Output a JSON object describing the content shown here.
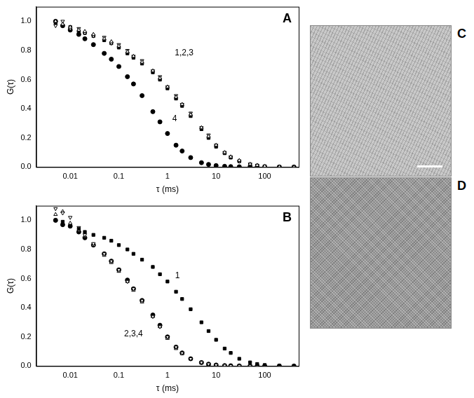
{
  "chart_data": [
    {
      "type": "scatter",
      "title": "A",
      "x_label": "τ (ms)",
      "y_label": "G(τ)",
      "log": "x",
      "grid": false,
      "xlim": [
        0.002,
        500
      ],
      "xticks": [
        0.01,
        0.1,
        1,
        10,
        100
      ],
      "ylim": [
        0,
        1.1
      ],
      "yticks": [
        {
          "value": 0,
          "label": "0.0"
        },
        0.2,
        0.4,
        0.6,
        0.8,
        {
          "value": 1,
          "label": "1.0"
        }
      ],
      "x": [
        0.005,
        0.007,
        0.01,
        0.015,
        0.02,
        0.03,
        0.05,
        0.07,
        0.1,
        0.15,
        0.2,
        0.3,
        0.5,
        0.7,
        1,
        1.5,
        2,
        3,
        5,
        7,
        10,
        15,
        20,
        30,
        50,
        70,
        100,
        200,
        400
      ],
      "series": [
        {
          "color": "#000000",
          "marker": "triangle-open",
          "values": [
            1.0,
            0.98,
            0.96,
            0.94,
            0.93,
            0.91,
            0.88,
            0.86,
            0.83,
            0.79,
            0.76,
            0.72,
            0.66,
            0.61,
            0.55,
            0.48,
            0.43,
            0.36,
            0.27,
            0.21,
            0.15,
            0.1,
            0.07,
            0.045,
            0.02,
            0.012,
            0.006,
            0.002,
            0.0
          ]
        },
        {
          "color": "#000000",
          "marker": "triangle-down-open",
          "values": [
            0.97,
            1.0,
            0.95,
            0.95,
            0.92,
            0.9,
            0.89,
            0.85,
            0.84,
            0.8,
            0.76,
            0.73,
            0.66,
            0.62,
            0.55,
            0.49,
            0.43,
            0.37,
            0.27,
            0.22,
            0.15,
            0.1,
            0.07,
            0.04,
            0.02,
            0.011,
            0.005,
            0.002,
            0.0
          ]
        },
        {
          "color": "#000000",
          "marker": "square",
          "values": [
            0.99,
            0.97,
            0.96,
            0.93,
            0.92,
            0.9,
            0.87,
            0.85,
            0.82,
            0.78,
            0.75,
            0.71,
            0.65,
            0.6,
            0.54,
            0.47,
            0.42,
            0.35,
            0.26,
            0.2,
            0.14,
            0.095,
            0.065,
            0.04,
            0.018,
            0.01,
            0.005,
            0.001,
            0.0
          ]
        },
        {
          "color": "#000000",
          "marker": "circle",
          "values": [
            1.0,
            0.97,
            0.94,
            0.91,
            0.88,
            0.84,
            0.78,
            0.74,
            0.69,
            0.62,
            0.57,
            0.49,
            0.38,
            0.31,
            0.23,
            0.15,
            0.11,
            0.065,
            0.03,
            0.018,
            0.01,
            0.005,
            0.003,
            0.002,
            0.001,
            0.0,
            0.0,
            0.0,
            0.0
          ]
        }
      ],
      "annotations": [
        {
          "text": "1,2,3",
          "x": 2.2,
          "y": 0.78
        },
        {
          "text": "4",
          "x": 1.4,
          "y": 0.33
        }
      ]
    },
    {
      "type": "scatter",
      "title": "B",
      "x_label": "τ (ms)",
      "y_label": "G(τ)",
      "log": "x",
      "grid": false,
      "xlim": [
        0.002,
        500
      ],
      "xticks": [
        0.01,
        0.1,
        1,
        10,
        100
      ],
      "ylim": [
        0,
        1.1
      ],
      "yticks": [
        {
          "value": 0,
          "label": "0.0"
        },
        0.2,
        0.4,
        0.6,
        0.8,
        {
          "value": 1,
          "label": "1.0"
        }
      ],
      "x": [
        0.005,
        0.007,
        0.01,
        0.015,
        0.02,
        0.03,
        0.05,
        0.07,
        0.1,
        0.15,
        0.2,
        0.3,
        0.5,
        0.7,
        1,
        1.5,
        2,
        3,
        5,
        7,
        10,
        15,
        20,
        30,
        50,
        70,
        100,
        200,
        400
      ],
      "series": [
        {
          "color": "#000000",
          "marker": "square",
          "values": [
            1.0,
            0.99,
            0.96,
            0.94,
            0.92,
            0.9,
            0.88,
            0.86,
            0.83,
            0.8,
            0.77,
            0.73,
            0.68,
            0.63,
            0.58,
            0.51,
            0.46,
            0.39,
            0.3,
            0.24,
            0.18,
            0.12,
            0.09,
            0.05,
            0.025,
            0.014,
            0.007,
            0.002,
            0.0
          ]
        },
        {
          "color": "#000000",
          "marker": "triangle-down-open",
          "values": [
            1.08,
            1.05,
            1.02,
            0.95,
            0.9,
            0.84,
            0.77,
            0.72,
            0.66,
            0.58,
            0.53,
            0.45,
            0.34,
            0.27,
            0.2,
            0.13,
            0.09,
            0.05,
            0.025,
            0.014,
            0.008,
            0.004,
            0.002,
            0.001,
            0.0,
            0.0,
            0.0,
            0.0,
            0.0
          ]
        },
        {
          "color": "#000000",
          "marker": "triangle-open",
          "values": [
            1.04,
            1.06,
            0.98,
            0.93,
            0.89,
            0.83,
            0.76,
            0.71,
            0.65,
            0.58,
            0.52,
            0.44,
            0.34,
            0.27,
            0.19,
            0.12,
            0.085,
            0.05,
            0.022,
            0.012,
            0.007,
            0.003,
            0.002,
            0.0,
            0.0,
            0.0,
            0.0,
            0.0,
            0.0
          ]
        },
        {
          "color": "#000000",
          "marker": "circle",
          "values": [
            1.0,
            0.97,
            0.96,
            0.92,
            0.88,
            0.83,
            0.77,
            0.72,
            0.66,
            0.59,
            0.53,
            0.45,
            0.35,
            0.28,
            0.2,
            0.13,
            0.09,
            0.05,
            0.024,
            0.013,
            0.007,
            0.003,
            0.002,
            0.001,
            0.0,
            0.0,
            0.0,
            0.0,
            0.0
          ]
        }
      ],
      "annotations": [
        {
          "text": "1",
          "x": 1.6,
          "y": 0.62
        },
        {
          "text": "2,3,4",
          "x": 0.2,
          "y": 0.22
        }
      ]
    }
  ],
  "images": [
    {
      "label": "C"
    },
    {
      "label": "D"
    }
  ]
}
